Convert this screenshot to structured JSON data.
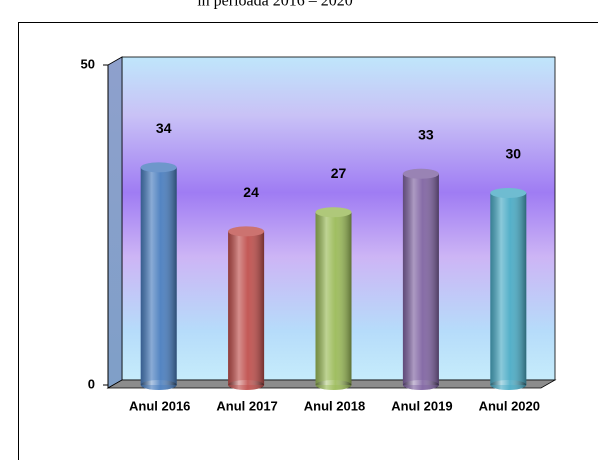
{
  "chart_data": {
    "type": "bar3d",
    "title": "în perioada 2016 – 2020",
    "categories": [
      "Anul 2016",
      "Anul 2017",
      "Anul 2018",
      "Anul 2019",
      "Anul 2020"
    ],
    "values": [
      34,
      24,
      27,
      33,
      30
    ],
    "colors": [
      "#4a7ebf",
      "#c0504d",
      "#9bbb59",
      "#8064a2",
      "#4bacc6"
    ],
    "ylim": [
      0,
      50
    ],
    "yticks": [
      0,
      50
    ]
  }
}
